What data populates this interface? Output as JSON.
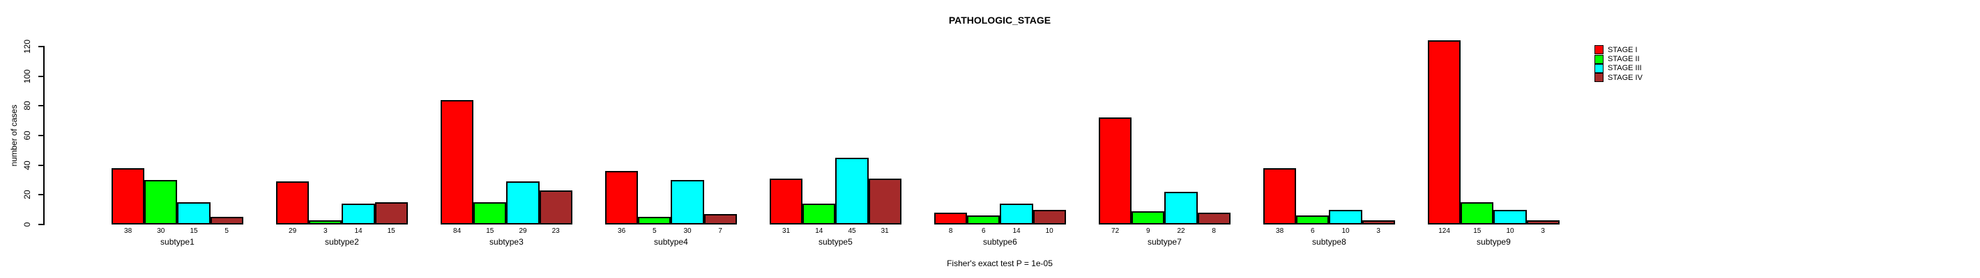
{
  "chart_data": {
    "type": "bar",
    "title": "PATHOLOGIC_STAGE",
    "ylabel": "number of cases",
    "xlabel": "",
    "ylim": [
      0,
      120
    ],
    "yticks": [
      0,
      20,
      40,
      60,
      80,
      100,
      120
    ],
    "grid": false,
    "legend_position": "top-right",
    "categories": [
      "subtype1",
      "subtype2",
      "subtype3",
      "subtype4",
      "subtype5",
      "subtype6",
      "subtype7",
      "subtype8",
      "subtype9"
    ],
    "series": [
      {
        "name": "STAGE I",
        "color": "#FF0000",
        "values": [
          38,
          29,
          84,
          36,
          31,
          8,
          72,
          38,
          124
        ]
      },
      {
        "name": "STAGE II",
        "color": "#00FF00",
        "values": [
          30,
          3,
          15,
          5,
          14,
          6,
          9,
          6,
          15
        ]
      },
      {
        "name": "STAGE III",
        "color": "#00FFFF",
        "values": [
          15,
          14,
          29,
          30,
          45,
          14,
          22,
          10,
          10
        ]
      },
      {
        "name": "STAGE IV",
        "color": "#A52A2A",
        "values": [
          5,
          15,
          23,
          7,
          31,
          10,
          8,
          3,
          3
        ]
      }
    ],
    "bar_value_labels_shown": true,
    "footnote": "Fisher's exact test P = 1e-05"
  }
}
